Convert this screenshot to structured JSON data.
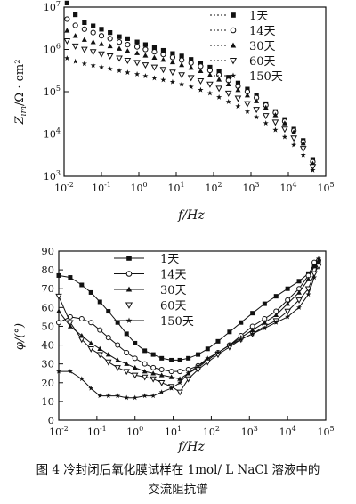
{
  "chart_data": [
    {
      "type": "scatter",
      "xlabel": "f/Hz",
      "ylabel": "Z_im/Ω·cm²",
      "ylabel_parts": {
        "symbol": "Z",
        "subscript": "im",
        "unit": "/Ω · cm²"
      },
      "xscale": "log",
      "yscale": "log",
      "xlim": [
        0.01,
        100000
      ],
      "ylim": [
        1000,
        10000000
      ],
      "x_ticks": [
        {
          "base": "10",
          "exp": "-2",
          "value": 0.01
        },
        {
          "base": "10",
          "exp": "-1",
          "value": 0.1
        },
        {
          "base": "10",
          "exp": "0",
          "value": 1
        },
        {
          "base": "10",
          "exp": "1",
          "value": 10
        },
        {
          "base": "10",
          "exp": "2",
          "value": 100
        },
        {
          "base": "10",
          "exp": "3",
          "value": 1000
        },
        {
          "base": "10",
          "exp": "4",
          "value": 10000
        },
        {
          "base": "10",
          "exp": "5",
          "value": 100000
        }
      ],
      "y_ticks": [
        {
          "base": "10",
          "exp": "3",
          "value": 1000
        },
        {
          "base": "10",
          "exp": "4",
          "value": 10000
        },
        {
          "base": "10",
          "exp": "5",
          "value": 100000
        },
        {
          "base": "10",
          "exp": "6",
          "value": 1000000
        },
        {
          "base": "10",
          "exp": "7",
          "value": 10000000
        }
      ],
      "x": [
        0.012,
        0.02,
        0.035,
        0.06,
        0.1,
        0.17,
        0.3,
        0.5,
        0.9,
        1.5,
        2.6,
        4.5,
        8,
        14,
        25,
        45,
        80,
        140,
        250,
        450,
        800,
        1400,
        2500,
        4500,
        8000,
        14000,
        25000,
        45000
      ],
      "series": [
        {
          "name": "1天",
          "marker": "square-filled",
          "connected": false,
          "values": [
            12500000,
            6600000,
            4300000,
            3600000,
            3000000,
            2500000,
            2000000,
            1800000,
            1500000,
            1300000,
            1100000,
            950000,
            800000,
            700000,
            580000,
            480000,
            380000,
            300000,
            220000,
            160000,
            115000,
            80000,
            52000,
            34000,
            22000,
            13000,
            7000,
            2500
          ]
        },
        {
          "name": "14天",
          "marker": "circle-open",
          "connected": false,
          "values": [
            5200000,
            3700000,
            3000000,
            2500000,
            2100000,
            1800000,
            1500000,
            1300000,
            1150000,
            1000000,
            880000,
            760000,
            650000,
            560000,
            480000,
            400000,
            320000,
            250000,
            185000,
            135000,
            100000,
            72000,
            48000,
            32000,
            20000,
            12000,
            6500,
            2200
          ]
        },
        {
          "name": "30天",
          "marker": "triangle-filled",
          "connected": false,
          "values": [
            2800000,
            2100000,
            1700000,
            1500000,
            1350000,
            1200000,
            1050000,
            920000,
            820000,
            720000,
            640000,
            570000,
            500000,
            430000,
            370000,
            310000,
            250000,
            195000,
            150000,
            110000,
            82000,
            60000,
            42000,
            28000,
            18000,
            11000,
            6000,
            2000
          ]
        },
        {
          "name": "60天",
          "marker": "triangle-down-open",
          "connected": false,
          "values": [
            1600000,
            1200000,
            1000000,
            880000,
            780000,
            700000,
            620000,
            550000,
            490000,
            430000,
            380000,
            335000,
            290000,
            250000,
            215000,
            180000,
            150000,
            120000,
            92000,
            70000,
            52000,
            38000,
            27000,
            19000,
            13000,
            8000,
            4500,
            1700
          ]
        },
        {
          "name": "150天",
          "marker": "star",
          "connected": false,
          "values": [
            620000,
            520000,
            460000,
            420000,
            380000,
            345000,
            315000,
            285000,
            260000,
            235000,
            210000,
            190000,
            170000,
            150000,
            130000,
            110000,
            92000,
            74000,
            58000,
            45000,
            34000,
            25000,
            18000,
            12500,
            8500,
            5500,
            3200,
            1400
          ]
        }
      ],
      "legend_position": "top-right",
      "grid": false
    },
    {
      "type": "line",
      "xlabel": "f/Hz",
      "ylabel": "φ/(°)",
      "xscale": "log",
      "xlim": [
        0.01,
        100000
      ],
      "ylim": [
        0,
        90
      ],
      "x_ticks": [
        {
          "base": "10",
          "exp": "-2",
          "value": 0.01
        },
        {
          "base": "10",
          "exp": "-1",
          "value": 0.1
        },
        {
          "base": "10",
          "exp": "0",
          "value": 1
        },
        {
          "base": "10",
          "exp": "1",
          "value": 10
        },
        {
          "base": "10",
          "exp": "2",
          "value": 100
        },
        {
          "base": "10",
          "exp": "3",
          "value": 1000
        },
        {
          "base": "10",
          "exp": "4",
          "value": 10000
        },
        {
          "base": "10",
          "exp": "5",
          "value": 100000
        }
      ],
      "y_ticks": [
        "0",
        "10",
        "20",
        "30",
        "40",
        "50",
        "60",
        "70",
        "80",
        "90"
      ],
      "series": [
        {
          "name": "1天",
          "marker": "square-filled",
          "points": [
            [
              0.01,
              77
            ],
            [
              0.02,
              76
            ],
            [
              0.04,
              72
            ],
            [
              0.07,
              68
            ],
            [
              0.12,
              63
            ],
            [
              0.2,
              58
            ],
            [
              0.35,
              52
            ],
            [
              0.6,
              46
            ],
            [
              1,
              41
            ],
            [
              1.8,
              37
            ],
            [
              3,
              35
            ],
            [
              5,
              33
            ],
            [
              9,
              32
            ],
            [
              15,
              32
            ],
            [
              25,
              33
            ],
            [
              45,
              35
            ],
            [
              80,
              38
            ],
            [
              150,
              42
            ],
            [
              300,
              47
            ],
            [
              600,
              52
            ],
            [
              1200,
              57
            ],
            [
              2500,
              62
            ],
            [
              5000,
              66
            ],
            [
              10000,
              70
            ],
            [
              20000,
              74
            ],
            [
              35000,
              78
            ],
            [
              50000,
              82
            ],
            [
              65000,
              84
            ]
          ]
        },
        {
          "name": "14天",
          "marker": "circle-open",
          "points": [
            [
              0.01,
              52
            ],
            [
              0.02,
              55
            ],
            [
              0.04,
              54
            ],
            [
              0.07,
              52
            ],
            [
              0.12,
              48
            ],
            [
              0.2,
              44
            ],
            [
              0.35,
              40
            ],
            [
              0.6,
              36
            ],
            [
              1,
              33
            ],
            [
              1.8,
              30
            ],
            [
              3,
              28
            ],
            [
              5,
              27
            ],
            [
              9,
              26
            ],
            [
              15,
              26
            ],
            [
              25,
              27
            ],
            [
              45,
              29
            ],
            [
              80,
              32
            ],
            [
              150,
              36
            ],
            [
              300,
              40
            ],
            [
              600,
              45
            ],
            [
              1200,
              50
            ],
            [
              2500,
              54
            ],
            [
              5000,
              58
            ],
            [
              10000,
              64
            ],
            [
              20000,
              70
            ],
            [
              35000,
              77
            ],
            [
              50000,
              84
            ],
            [
              65000,
              85
            ]
          ]
        },
        {
          "name": "30天",
          "marker": "triangle-filled",
          "points": [
            [
              0.01,
              58
            ],
            [
              0.02,
              50
            ],
            [
              0.04,
              45
            ],
            [
              0.07,
              41
            ],
            [
              0.12,
              38
            ],
            [
              0.2,
              35
            ],
            [
              0.35,
              32
            ],
            [
              0.6,
              30
            ],
            [
              1,
              28
            ],
            [
              1.8,
              26
            ],
            [
              3,
              25
            ],
            [
              5,
              24
            ],
            [
              9,
              23
            ],
            [
              15,
              22
            ],
            [
              25,
              25
            ],
            [
              45,
              28
            ],
            [
              80,
              32
            ],
            [
              150,
              36
            ],
            [
              300,
              40
            ],
            [
              600,
              44
            ],
            [
              1200,
              48
            ],
            [
              2500,
              52
            ],
            [
              5000,
              56
            ],
            [
              10000,
              62
            ],
            [
              20000,
              68
            ],
            [
              35000,
              75
            ],
            [
              50000,
              82
            ],
            [
              65000,
              85
            ]
          ]
        },
        {
          "name": "60天",
          "marker": "triangle-down-open",
          "points": [
            [
              0.01,
              66
            ],
            [
              0.02,
              52
            ],
            [
              0.04,
              43
            ],
            [
              0.07,
              38
            ],
            [
              0.12,
              35
            ],
            [
              0.2,
              31
            ],
            [
              0.35,
              28
            ],
            [
              0.6,
              26
            ],
            [
              1,
              24
            ],
            [
              1.8,
              23
            ],
            [
              3,
              22
            ],
            [
              5,
              20
            ],
            [
              9,
              18
            ],
            [
              15,
              15
            ],
            [
              25,
              22
            ],
            [
              45,
              27
            ],
            [
              80,
              31
            ],
            [
              150,
              35
            ],
            [
              300,
              39
            ],
            [
              600,
              43
            ],
            [
              1200,
              46
            ],
            [
              2500,
              50
            ],
            [
              5000,
              53
            ],
            [
              10000,
              58
            ],
            [
              20000,
              64
            ],
            [
              35000,
              70
            ],
            [
              50000,
              78
            ],
            [
              65000,
              82
            ]
          ]
        },
        {
          "name": "150天",
          "marker": "star",
          "points": [
            [
              0.01,
              26
            ],
            [
              0.02,
              26
            ],
            [
              0.04,
              22
            ],
            [
              0.07,
              17
            ],
            [
              0.12,
              13
            ],
            [
              0.2,
              13
            ],
            [
              0.35,
              13
            ],
            [
              0.6,
              12
            ],
            [
              1,
              12
            ],
            [
              1.8,
              13
            ],
            [
              3,
              13
            ],
            [
              5,
              15
            ],
            [
              9,
              17
            ],
            [
              15,
              20
            ],
            [
              25,
              25
            ],
            [
              45,
              29
            ],
            [
              80,
              33
            ],
            [
              150,
              36
            ],
            [
              300,
              40
            ],
            [
              600,
              43
            ],
            [
              1200,
              46
            ],
            [
              2500,
              49
            ],
            [
              5000,
              52
            ],
            [
              10000,
              55
            ],
            [
              20000,
              60
            ],
            [
              35000,
              67
            ],
            [
              50000,
              76
            ],
            [
              65000,
              86
            ]
          ]
        }
      ],
      "legend_position": "top-left",
      "grid": false
    }
  ],
  "caption": {
    "line1": "图 4   冷封闭后氧化膜试样在 1mol/ L NaCl 溶液中的",
    "line2": "交流阻抗谱"
  }
}
